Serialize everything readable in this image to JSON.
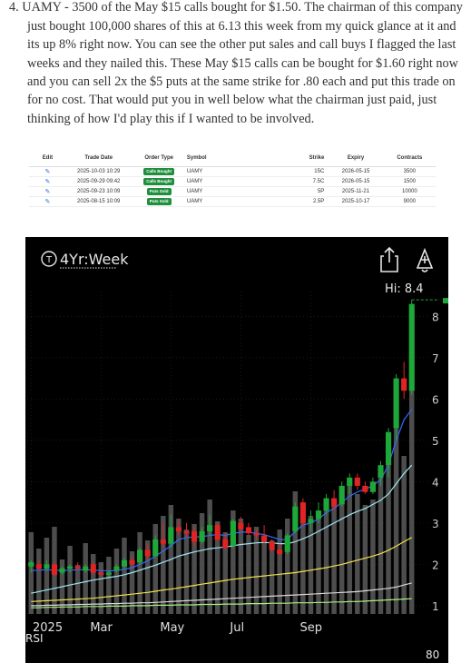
{
  "article": {
    "lines": [
      "4. UAMY - 3500 of the May $15 calls bought for $1.50. The chairman of this company",
      "just bought 100,000 shares of this at 6.13 this week from my quick glance at it and",
      "its up 8% right now. You can see the other put sales and call buys I flagged the last",
      "weeks and they nailed this. These May $15 calls can be bought for $1.60 right now",
      "and you can sell 2x the $5 puts at the same strike for .80 each and put this trade on",
      "for no cost. That would put you in well below what the chairman just paid, just",
      "thinking of how I'd play this if I wanted to be involved."
    ]
  },
  "trades": {
    "headers": [
      "Edit",
      "Trade Date",
      "Order Type",
      "Symbol",
      "Strike",
      "Expiry",
      "Contracts"
    ],
    "rows": [
      {
        "date": "2025-10-03 10:29",
        "type": "Calls Bought",
        "symbol": "UAMY",
        "strike": "15C",
        "expiry": "2026-05-15",
        "contracts": "3500"
      },
      {
        "date": "2025-09-29 09:42",
        "type": "Calls Bought",
        "symbol": "UAMY",
        "strike": "7.5C",
        "expiry": "2026-05-15",
        "contracts": "1500"
      },
      {
        "date": "2025-09-23 10:09",
        "type": "Puts Sold",
        "symbol": "UAMY",
        "strike": "5P",
        "expiry": "2025-11-21",
        "contracts": "10000"
      },
      {
        "date": "2025-08-15 10:09",
        "type": "Puts Sold",
        "symbol": "UAMY",
        "strike": "2.5P",
        "expiry": "2025-10-17",
        "contracts": "9000"
      }
    ]
  },
  "chart": {
    "period_label": "4Yr:Week",
    "period_icon": "T",
    "hi_label": "Hi: 8.4",
    "share_icon": "share-icon",
    "alert_icon": "alert-add-icon",
    "rsi_label": "RSI",
    "rsi_value": "80",
    "up_color": "#1fa83a",
    "down_color": "#e02424"
  },
  "chart_data": {
    "type": "candlestick",
    "y_ticks": [
      1,
      2,
      3,
      4,
      5,
      6,
      7,
      8
    ],
    "ylim": [
      0.8,
      8.6
    ],
    "x_labels": [
      "2025",
      "Mar",
      "May",
      "Jul",
      "Sep"
    ],
    "x_label_weeks": [
      0,
      9,
      18,
      27,
      36
    ],
    "ohlc": [
      [
        1.95,
        2.1,
        1.8,
        2.05
      ],
      [
        2.0,
        2.1,
        1.85,
        1.9
      ],
      [
        1.9,
        2.1,
        1.85,
        2.0
      ],
      [
        2.0,
        2.05,
        1.7,
        1.75
      ],
      [
        1.8,
        1.95,
        1.75,
        1.9
      ],
      [
        1.9,
        2.0,
        1.8,
        1.95
      ],
      [
        1.95,
        2.05,
        1.85,
        1.9
      ],
      [
        1.85,
        2.0,
        1.8,
        1.95
      ],
      [
        2.0,
        2.05,
        1.75,
        1.8
      ],
      [
        1.8,
        1.85,
        1.7,
        1.75
      ],
      [
        1.75,
        1.85,
        1.7,
        1.8
      ],
      [
        1.85,
        2.0,
        1.8,
        1.95
      ],
      [
        1.95,
        2.15,
        1.9,
        2.1
      ],
      [
        2.1,
        2.2,
        1.95,
        2.0
      ],
      [
        2.05,
        2.4,
        2.0,
        2.35
      ],
      [
        2.35,
        2.5,
        2.1,
        2.2
      ],
      [
        2.2,
        2.7,
        2.15,
        2.6
      ],
      [
        2.6,
        3.0,
        2.4,
        2.5
      ],
      [
        2.5,
        3.2,
        2.4,
        2.9
      ],
      [
        2.9,
        3.1,
        2.7,
        2.8
      ],
      [
        2.8,
        3.0,
        2.65,
        2.75
      ],
      [
        2.8,
        2.9,
        2.45,
        2.55
      ],
      [
        2.55,
        2.9,
        2.5,
        2.8
      ],
      [
        2.8,
        3.2,
        2.7,
        2.95
      ],
      [
        2.95,
        3.0,
        2.55,
        2.6
      ],
      [
        2.6,
        2.75,
        2.35,
        2.4
      ],
      [
        2.45,
        3.1,
        2.4,
        3.05
      ],
      [
        3.0,
        3.15,
        2.8,
        2.85
      ],
      [
        2.9,
        3.0,
        2.7,
        2.75
      ],
      [
        2.75,
        2.85,
        2.6,
        2.7
      ],
      [
        2.7,
        2.95,
        2.5,
        2.55
      ],
      [
        2.55,
        2.6,
        2.3,
        2.35
      ],
      [
        2.35,
        2.5,
        2.2,
        2.25
      ],
      [
        2.3,
        2.75,
        2.25,
        2.7
      ],
      [
        2.8,
        3.5,
        2.75,
        3.4
      ],
      [
        3.5,
        3.6,
        2.9,
        3.0
      ],
      [
        3.0,
        3.3,
        2.8,
        3.1
      ],
      [
        3.1,
        3.5,
        3.0,
        3.3
      ],
      [
        3.3,
        3.7,
        3.2,
        3.6
      ],
      [
        3.6,
        3.8,
        3.3,
        3.4
      ],
      [
        3.45,
        4.0,
        3.4,
        3.9
      ],
      [
        3.9,
        4.2,
        3.7,
        4.1
      ],
      [
        4.1,
        4.2,
        3.8,
        3.9
      ],
      [
        3.9,
        4.0,
        3.7,
        3.75
      ],
      [
        3.75,
        4.1,
        3.7,
        4.0
      ],
      [
        4.1,
        4.5,
        3.9,
        4.4
      ],
      [
        4.4,
        5.3,
        4.1,
        5.2
      ],
      [
        5.3,
        6.6,
        5.0,
        6.5
      ],
      [
        6.5,
        6.9,
        6.0,
        6.2
      ],
      [
        6.2,
        8.4,
        6.1,
        8.3
      ]
    ],
    "volume": [
      0.3,
      0.24,
      0.28,
      0.32,
      0.2,
      0.25,
      0.18,
      0.26,
      0.22,
      0.19,
      0.21,
      0.24,
      0.28,
      0.23,
      0.3,
      0.27,
      0.33,
      0.36,
      0.4,
      0.35,
      0.31,
      0.33,
      0.37,
      0.42,
      0.34,
      0.3,
      0.38,
      0.35,
      0.29,
      0.32,
      0.28,
      0.27,
      0.31,
      0.35,
      0.45,
      0.4,
      0.36,
      0.38,
      0.42,
      0.4,
      0.45,
      0.5,
      0.44,
      0.4,
      0.42,
      0.52,
      0.6,
      0.7,
      0.58,
      0.88
    ],
    "ma_lines": [
      {
        "color": "#2f6bff",
        "values": [
          1.85,
          1.86,
          1.87,
          1.86,
          1.85,
          1.86,
          1.87,
          1.87,
          1.86,
          1.85,
          1.84,
          1.85,
          1.88,
          1.92,
          2.0,
          2.08,
          2.2,
          2.32,
          2.45,
          2.6,
          2.65,
          2.66,
          2.67,
          2.7,
          2.72,
          2.7,
          2.75,
          2.78,
          2.78,
          2.75,
          2.72,
          2.66,
          2.6,
          2.6,
          2.8,
          2.95,
          3.0,
          3.1,
          3.25,
          3.35,
          3.5,
          3.65,
          3.75,
          3.82,
          3.9,
          4.05,
          4.4,
          5.0,
          5.5,
          5.75
        ]
      },
      {
        "color": "#9ee4f0",
        "values": [
          1.3,
          1.34,
          1.38,
          1.42,
          1.46,
          1.5,
          1.54,
          1.58,
          1.62,
          1.65,
          1.68,
          1.71,
          1.75,
          1.8,
          1.86,
          1.92,
          1.98,
          2.05,
          2.12,
          2.2,
          2.25,
          2.3,
          2.34,
          2.38,
          2.4,
          2.42,
          2.45,
          2.48,
          2.5,
          2.52,
          2.53,
          2.52,
          2.5,
          2.5,
          2.55,
          2.62,
          2.7,
          2.8,
          2.9,
          3.0,
          3.1,
          3.2,
          3.28,
          3.35,
          3.45,
          3.55,
          3.7,
          3.95,
          4.2,
          4.4
        ]
      },
      {
        "color": "#f0e04a",
        "values": [
          1.1,
          1.11,
          1.12,
          1.13,
          1.14,
          1.15,
          1.16,
          1.17,
          1.18,
          1.2,
          1.22,
          1.24,
          1.26,
          1.28,
          1.3,
          1.32,
          1.35,
          1.38,
          1.4,
          1.43,
          1.46,
          1.49,
          1.52,
          1.55,
          1.58,
          1.61,
          1.64,
          1.66,
          1.68,
          1.7,
          1.72,
          1.74,
          1.76,
          1.78,
          1.8,
          1.83,
          1.86,
          1.89,
          1.92,
          1.96,
          2.0,
          2.05,
          2.1,
          2.15,
          2.2,
          2.26,
          2.34,
          2.44,
          2.55,
          2.65
        ]
      },
      {
        "color": "#d9d9d9",
        "values": [
          1.0,
          1.0,
          1.01,
          1.01,
          1.02,
          1.02,
          1.03,
          1.03,
          1.04,
          1.04,
          1.05,
          1.05,
          1.06,
          1.06,
          1.07,
          1.07,
          1.08,
          1.09,
          1.1,
          1.11,
          1.12,
          1.13,
          1.14,
          1.15,
          1.16,
          1.17,
          1.18,
          1.19,
          1.2,
          1.21,
          1.22,
          1.23,
          1.24,
          1.25,
          1.26,
          1.27,
          1.28,
          1.29,
          1.3,
          1.31,
          1.32,
          1.33,
          1.34,
          1.36,
          1.38,
          1.4,
          1.42,
          1.45,
          1.5,
          1.55
        ]
      },
      {
        "color": "#a8f080",
        "values": [
          0.95,
          0.95,
          0.96,
          0.96,
          0.97,
          0.97,
          0.97,
          0.98,
          0.98,
          0.98,
          0.99,
          0.99,
          0.99,
          1.0,
          1.0,
          1.0,
          1.01,
          1.01,
          1.01,
          1.02,
          1.02,
          1.02,
          1.03,
          1.03,
          1.03,
          1.04,
          1.04,
          1.04,
          1.05,
          1.05,
          1.05,
          1.06,
          1.06,
          1.06,
          1.07,
          1.07,
          1.07,
          1.08,
          1.08,
          1.09,
          1.09,
          1.1,
          1.1,
          1.11,
          1.12,
          1.13,
          1.14,
          1.15,
          1.16,
          1.17
        ]
      }
    ]
  }
}
